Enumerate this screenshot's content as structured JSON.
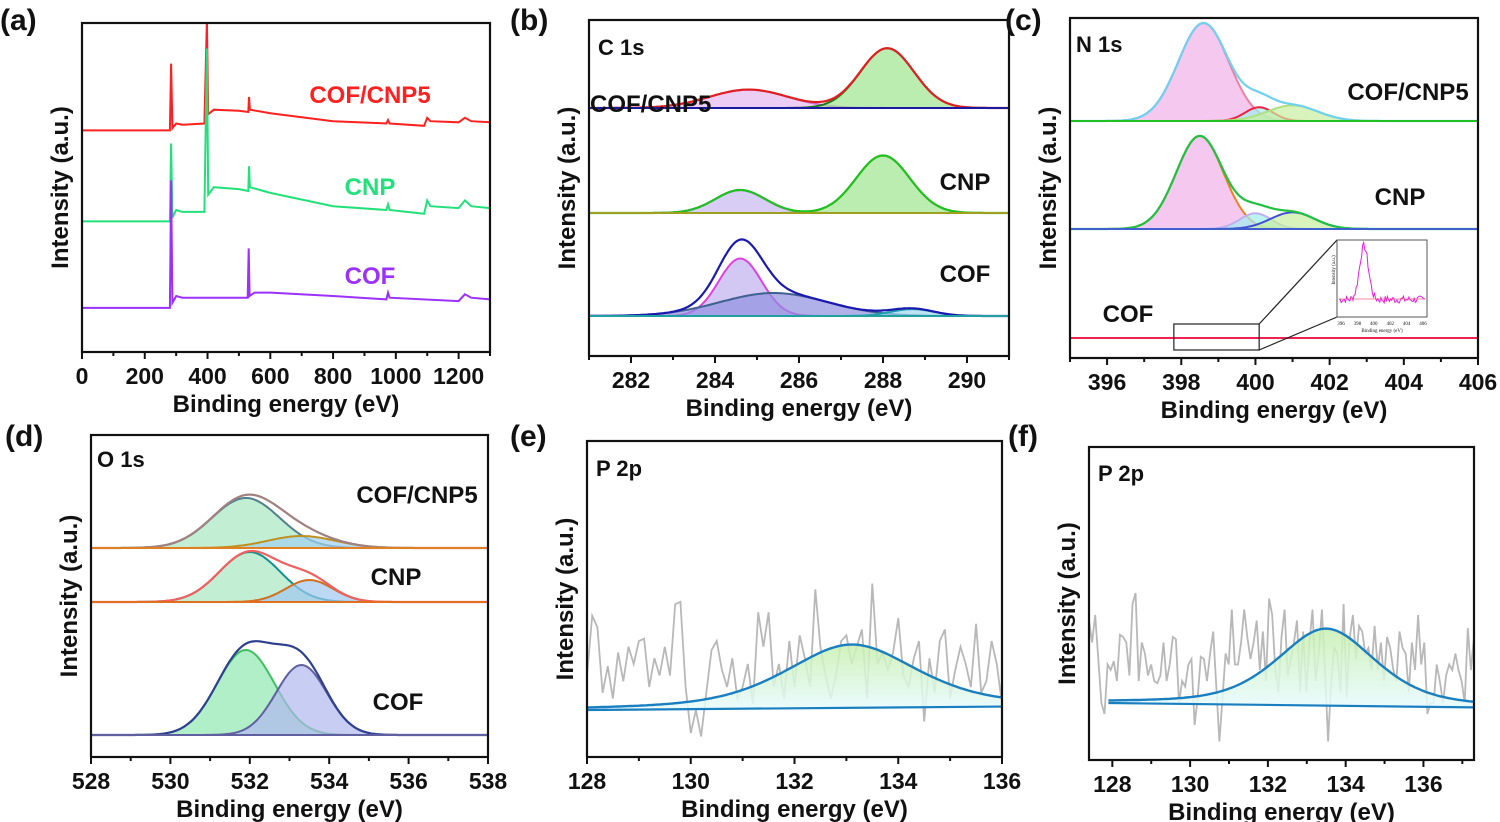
{
  "figure": {
    "panels": [
      "(a)",
      "(b)",
      "(c)",
      "(d)",
      "(e)",
      "(f)"
    ]
  },
  "chart_data": [
    {
      "id": "a",
      "type": "line",
      "panel_label": "(a)",
      "title": "",
      "xlabel": "Binding energy (eV)",
      "ylabel": "Intensity (a.u.)",
      "xlim": [
        0,
        1300
      ],
      "xticks": [
        0,
        200,
        400,
        600,
        800,
        1000,
        1200
      ],
      "xtick_labels": [
        "0",
        "200",
        "400",
        "600",
        "800",
        "1000",
        "1200"
      ],
      "y_ticks_shown": false,
      "series": [
        {
          "name": "COF/CNP5",
          "color": "#ff2020",
          "label_pos": [
            920,
            "upper"
          ],
          "offset": 2.0,
          "points": [
            [
              0,
              0.04
            ],
            [
              280,
              0.04
            ],
            [
              284,
              0.62
            ],
            [
              288,
              0.06
            ],
            [
              300,
              0.1
            ],
            [
              320,
              0.09
            ],
            [
              390,
              0.1
            ],
            [
              398,
              1.0
            ],
            [
              402,
              0.18
            ],
            [
              420,
              0.22
            ],
            [
              500,
              0.21
            ],
            [
              530,
              0.2
            ],
            [
              532,
              0.33
            ],
            [
              535,
              0.22
            ],
            [
              600,
              0.19
            ],
            [
              800,
              0.12
            ],
            [
              970,
              0.1
            ],
            [
              975,
              0.13
            ],
            [
              980,
              0.1
            ],
            [
              1090,
              0.08
            ],
            [
              1100,
              0.15
            ],
            [
              1110,
              0.12
            ],
            [
              1200,
              0.11
            ],
            [
              1220,
              0.15
            ],
            [
              1240,
              0.12
            ],
            [
              1300,
              0.11
            ]
          ]
        },
        {
          "name": "CNP",
          "color": "#22e07a",
          "label_pos": [
            920,
            "middle"
          ],
          "offset": 1.0,
          "points": [
            [
              0,
              0.04
            ],
            [
              280,
              0.04
            ],
            [
              284,
              0.45
            ],
            [
              288,
              0.06
            ],
            [
              300,
              0.1
            ],
            [
              320,
              0.09
            ],
            [
              390,
              0.09
            ],
            [
              398,
              0.95
            ],
            [
              402,
              0.18
            ],
            [
              420,
              0.22
            ],
            [
              500,
              0.21
            ],
            [
              530,
              0.2
            ],
            [
              532,
              0.33
            ],
            [
              535,
              0.22
            ],
            [
              600,
              0.19
            ],
            [
              800,
              0.12
            ],
            [
              970,
              0.1
            ],
            [
              975,
              0.13
            ],
            [
              980,
              0.1
            ],
            [
              1090,
              0.08
            ],
            [
              1100,
              0.15
            ],
            [
              1110,
              0.12
            ],
            [
              1200,
              0.11
            ],
            [
              1220,
              0.15
            ],
            [
              1240,
              0.12
            ],
            [
              1300,
              0.11
            ]
          ]
        },
        {
          "name": "COF",
          "color": "#9b30ff",
          "label_pos": [
            920,
            "lower"
          ],
          "offset": 0.0,
          "points": [
            [
              0,
              0.03
            ],
            [
              280,
              0.03
            ],
            [
              284,
              0.78
            ],
            [
              288,
              0.06
            ],
            [
              300,
              0.1
            ],
            [
              320,
              0.09
            ],
            [
              520,
              0.09
            ],
            [
              528,
              0.09
            ],
            [
              531,
              0.38
            ],
            [
              534,
              0.1
            ],
            [
              550,
              0.12
            ],
            [
              600,
              0.12
            ],
            [
              800,
              0.1
            ],
            [
              970,
              0.08
            ],
            [
              975,
              0.12
            ],
            [
              980,
              0.09
            ],
            [
              1200,
              0.07
            ],
            [
              1220,
              0.11
            ],
            [
              1240,
              0.09
            ],
            [
              1300,
              0.08
            ]
          ]
        }
      ]
    },
    {
      "id": "b",
      "type": "area",
      "panel_label": "(b)",
      "title": "C 1s",
      "xlabel": "Binding energy (eV)",
      "ylabel": "Intensity (a.u.)",
      "xlim": [
        281,
        291
      ],
      "xticks": [
        282,
        284,
        286,
        288,
        290
      ],
      "xtick_labels": [
        "282",
        "284",
        "286",
        "288",
        "290"
      ],
      "y_ticks_shown": false,
      "samples": [
        {
          "name": "COF/CNP5",
          "baseline_color": "#1a1aa0",
          "envelope_color": "#e02020",
          "peaks": [
            {
              "center": 284.8,
              "height": 0.16,
              "fwhm": 2.2,
              "line": "#d070e0",
              "fill": "#e4b8f0"
            },
            {
              "center": 288.1,
              "height": 0.52,
              "fwhm": 1.5,
              "line": "#1f7a1f",
              "fill": "#9ee58e"
            }
          ]
        },
        {
          "name": "CNP",
          "baseline_color": "#a0a020",
          "envelope_color": "#20c020",
          "peaks": [
            {
              "center": 284.6,
              "height": 0.2,
              "fwhm": 1.4,
              "line": "#9020c0",
              "fill": "#c8b8f0"
            },
            {
              "center": 288.0,
              "height": 0.5,
              "fwhm": 1.5,
              "line": "#a0a020",
              "fill": "#9ee58e"
            }
          ]
        },
        {
          "name": "COF",
          "baseline_color": "#20a0a0",
          "envelope_color": "#1a1ab0",
          "peaks": [
            {
              "center": 284.6,
              "height": 0.5,
              "fwhm": 1.2,
              "line": "#e040e0",
              "fill": "#c0b0f0"
            },
            {
              "center": 285.4,
              "height": 0.2,
              "fwhm": 3.0,
              "line": "#406090",
              "fill": "#9090e0"
            },
            {
              "center": 288.7,
              "height": 0.06,
              "fwhm": 1.2,
              "line": "#20a0b0",
              "fill": "#a0d8f0"
            }
          ]
        }
      ]
    },
    {
      "id": "c",
      "type": "area",
      "panel_label": "(c)",
      "title": "N 1s",
      "xlabel": "Binding energy (eV)",
      "ylabel": "Intensity (a.u.)",
      "xlim": [
        395,
        406
      ],
      "xticks": [
        396,
        398,
        400,
        402,
        404,
        406
      ],
      "xtick_labels": [
        "396",
        "398",
        "400",
        "402",
        "404",
        "406"
      ],
      "y_ticks_shown": false,
      "samples": [
        {
          "name": "COF/CNP5",
          "baseline_color": "#20c020",
          "envelope_color": "#70d0f0",
          "peaks": [
            {
              "center": 398.6,
              "height": 1.0,
              "fwhm": 1.6,
              "line": "#f080a0",
              "fill": "#f0b0e8"
            },
            {
              "center": 400.1,
              "height": 0.14,
              "fwhm": 0.9,
              "line": "#f02040",
              "fill": "#a0f0f0"
            },
            {
              "center": 401.0,
              "height": 0.16,
              "fwhm": 1.6,
              "line": "#b0e080",
              "fill": "#c8f0a0"
            }
          ]
        },
        {
          "name": "CNP",
          "baseline_color": "#4060d0",
          "envelope_color": "#20c040",
          "peaks": [
            {
              "center": 398.5,
              "height": 0.95,
              "fwhm": 1.5,
              "line": "#f08020",
              "fill": "#f0b0e8"
            },
            {
              "center": 400.0,
              "height": 0.16,
              "fwhm": 1.0,
              "line": "#c0b0f0",
              "fill": "#a0f0f0"
            },
            {
              "center": 401.0,
              "height": 0.17,
              "fwhm": 1.4,
              "line": "#4050d0",
              "fill": "#c8f0a0"
            }
          ]
        },
        {
          "name": "COF",
          "baseline_color": "#f02050",
          "envelope_color": "#f02050",
          "peaks": []
        }
      ],
      "inset": {
        "xlabel": "Binding energy (eV)",
        "ylabel": "Intensity (a.u.)",
        "xticks": [
          "396",
          "398",
          "400",
          "402",
          "404",
          "406"
        ],
        "line_color": "#e020e0",
        "fit_color": "#f06080",
        "peak_center": 398.9,
        "zoom_box_x": [
          397.8,
          400.1
        ]
      }
    },
    {
      "id": "d",
      "type": "area",
      "panel_label": "(d)",
      "title": "O 1s",
      "xlabel": "Binding energy (eV)",
      "ylabel": "Intensity (a.u.)",
      "xlim": [
        528,
        538
      ],
      "xticks": [
        528,
        530,
        532,
        534,
        536,
        538
      ],
      "xtick_labels": [
        "528",
        "530",
        "532",
        "534",
        "536",
        "538"
      ],
      "y_ticks_shown": false,
      "samples": [
        {
          "name": "COF/CNP5",
          "baseline_color": "#e08020",
          "envelope_color": "#a08080",
          "peaks": [
            {
              "center": 531.9,
              "height": 0.5,
              "fwhm": 2.0,
              "line": "#508090",
              "fill": "#a8e8c0"
            },
            {
              "center": 533.3,
              "height": 0.12,
              "fwhm": 2.0,
              "line": "#c09020",
              "fill": "#a0d0f0"
            }
          ]
        },
        {
          "name": "CNP",
          "baseline_color": "#e07020",
          "envelope_color": "#f06060",
          "peaks": [
            {
              "center": 532.0,
              "height": 0.5,
              "fwhm": 1.8,
              "line": "#109090",
              "fill": "#a8e8c0"
            },
            {
              "center": 533.5,
              "height": 0.22,
              "fwhm": 1.4,
              "line": "#d07020",
              "fill": "#a0c8f0"
            }
          ]
        },
        {
          "name": "COF",
          "baseline_color": "#6060a0",
          "envelope_color": "#304090",
          "peaks": [
            {
              "center": 531.9,
              "height": 0.85,
              "fwhm": 1.7,
              "line": "#40c060",
              "fill": "#90e8b0"
            },
            {
              "center": 533.3,
              "height": 0.7,
              "fwhm": 1.5,
              "line": "#6060a0",
              "fill": "#b0b8f0"
            }
          ]
        }
      ]
    },
    {
      "id": "e",
      "type": "area",
      "panel_label": "(e)",
      "title": "P 2p",
      "xlabel": "Binding energy (eV)",
      "ylabel": "Intensity (a.u.)",
      "xlim": [
        128,
        136
      ],
      "xticks": [
        128,
        130,
        132,
        134,
        136
      ],
      "xtick_labels": [
        "128",
        "130",
        "132",
        "134",
        "136"
      ],
      "y_ticks_shown": false,
      "raw_color": "#b8b8b8",
      "fit_color": "#1a7fc0",
      "fit": {
        "center": 133.1,
        "height": 0.55,
        "fwhm": 3.0,
        "baseline": [
          0.0,
          0.03
        ]
      },
      "raw_values": [
        0.3,
        0.82,
        0.72,
        0.15,
        0.38,
        0.1,
        0.5,
        0.25,
        0.55,
        0.4,
        0.6,
        0.62,
        0.2,
        0.45,
        0.3,
        0.55,
        0.3,
        0.92,
        0.94,
        0.2,
        -0.2,
        0.0,
        -0.23,
        0.15,
        0.52,
        0.6,
        0.35,
        0.2,
        0.45,
        0.1,
        0.2,
        0.4,
        0.05,
        0.85,
        0.55,
        0.85,
        0.2,
        0.4,
        0.1,
        0.6,
        0.2,
        0.65,
        0.45,
        0.2,
        1.05,
        0.55,
        0.3,
        0.1,
        0.3,
        0.6,
        0.65,
        0.4,
        0.55,
        0.7,
        0.1,
        1.1,
        0.4,
        0.5,
        0.35,
        0.5,
        0.8,
        0.3,
        0.2,
        0.45,
        0.6,
        -0.1,
        0.45,
        0.15,
        0.6,
        0.7,
        0.1,
        0.35,
        0.55,
        0.4,
        0.2,
        0.75,
        0.15,
        0.25,
        0.6,
        0.4,
        0.05
      ]
    },
    {
      "id": "f",
      "type": "area",
      "panel_label": "(f)",
      "title": "P 2p",
      "xlabel": "Binding energy (eV)",
      "ylabel": "Intensity (a.u.)",
      "xlim": [
        127.4,
        137.3
      ],
      "xticks": [
        128,
        130,
        132,
        134,
        136
      ],
      "xtick_labels": [
        "128",
        "130",
        "132",
        "134",
        "136"
      ],
      "y_ticks_shown": false,
      "raw_color": "#b8b8b8",
      "fit_color": "#1a7fc0",
      "fit": {
        "center": 133.5,
        "height": 0.7,
        "fwhm": 3.0,
        "baseline": [
          0.0,
          -0.04
        ],
        "fit_xrange": [
          127.9,
          137.3
        ]
      },
      "raw_values": [
        0.75,
        0.55,
        0.8,
        0.4,
        0.0,
        -0.1,
        0.35,
        0.3,
        0.38,
        0.2,
        0.62,
        0.6,
        0.55,
        0.25,
        0.9,
        1.0,
        0.2,
        0.55,
        0.45,
        0.25,
        0.35,
        0.2,
        0.18,
        0.25,
        0.55,
        0.2,
        0.35,
        0.6,
        0.58,
        0.0,
        0.2,
        0.15,
        0.35,
        0.4,
        -0.2,
        0.05,
        0.42,
        0.4,
        0.2,
        0.45,
        0.65,
        0.15,
        -0.35,
        0.05,
        0.45,
        0.35,
        0.85,
        0.35,
        0.35,
        0.55,
        0.85,
        0.6,
        0.4,
        0.55,
        0.75,
        0.3,
        0.65,
        0.2,
        0.95,
        0.8,
        0.3,
        0.1,
        0.6,
        0.85,
        0.25,
        0.4,
        0.55,
        0.75,
        0.1,
        0.65,
        0.1,
        0.55,
        0.85,
        0.2,
        0.45,
        0.85,
        0.3,
        -0.35,
        0.2,
        0.5,
        0.45,
        0.1,
        0.9,
        0.05,
        0.6,
        0.8,
        0.4,
        0.7,
        0.65,
        0.45,
        0.5,
        0.3,
        0.7,
        0.3,
        0.55,
        0.2,
        0.6,
        0.5,
        0.3,
        0.2,
        0.65,
        0.5,
        0.45,
        0.1,
        0.55,
        0.3,
        0.8,
        0.35,
        0.55,
        -0.1,
        0.0,
        0.0,
        0.35,
        0.2,
        0.0,
        0.25,
        0.35,
        0.3,
        0.45,
        0.3,
        0.2,
        0.0,
        0.68,
        0.3,
        0.6
      ]
    }
  ]
}
